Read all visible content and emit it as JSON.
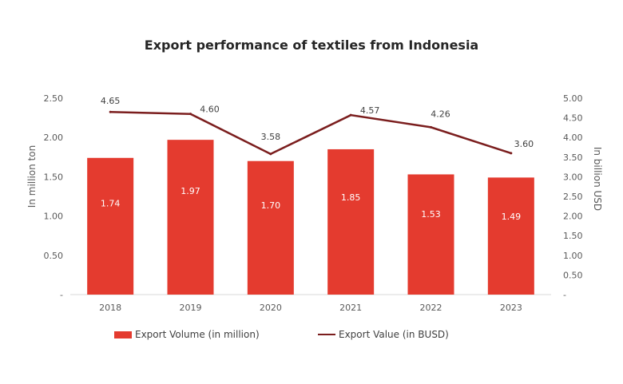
{
  "chart_data": {
    "type": "bar",
    "title": "Export performance of textiles from Indonesia",
    "categories": [
      "2018",
      "2019",
      "2020",
      "2021",
      "2022",
      "2023"
    ],
    "series": [
      {
        "name": "Export Volume (in million)",
        "type": "bar",
        "axis": "left",
        "values": [
          1.74,
          1.97,
          1.7,
          1.85,
          1.53,
          1.49
        ],
        "labels": [
          "1.74",
          "1.97",
          "1.70",
          "1.85",
          "1.53",
          "1.49"
        ],
        "color": "#e43b2f"
      },
      {
        "name": "Export Value (in BUSD)",
        "type": "line",
        "axis": "right",
        "values": [
          4.65,
          4.6,
          3.58,
          4.57,
          4.26,
          3.6
        ],
        "labels": [
          "4.65",
          "4.60",
          "3.58",
          "4.57",
          "4.26",
          "3.60"
        ],
        "color": "#7b1e1e"
      }
    ],
    "ylabel": "In million ton",
    "y2label": "In billion USD",
    "ylim": [
      0,
      2.5
    ],
    "y2lim": [
      0,
      5.0
    ],
    "yticks": [
      "-",
      "0.50",
      "1.00",
      "1.50",
      "2.00",
      "2.50"
    ],
    "y2ticks": [
      "-",
      "0.50",
      "1.00",
      "1.50",
      "2.00",
      "2.50",
      "3.00",
      "3.50",
      "4.00",
      "4.50",
      "5.00"
    ],
    "grid": false,
    "legend_position": "bottom"
  }
}
